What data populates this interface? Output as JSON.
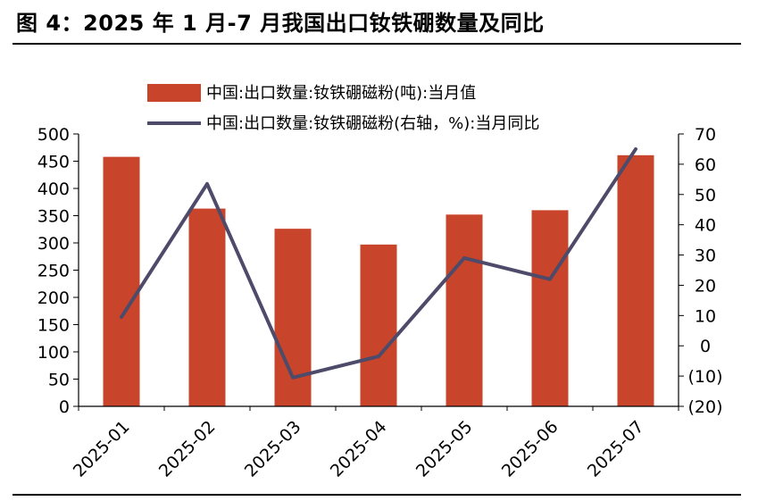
{
  "figure_title": "图 4：2025 年 1 月-7 月我国出口钕铁硼数量及同比",
  "colors": {
    "bar": "#C8442A",
    "line": "#4E4A6A",
    "axis": "#000000"
  },
  "chart_data": {
    "type": "bar",
    "categories": [
      "2025-01",
      "2025-02",
      "2025-03",
      "2025-04",
      "2025-05",
      "2025-06",
      "2025-07"
    ],
    "series": [
      {
        "name": "中国:出口数量:钕铁硼磁粉(吨):当月值",
        "type": "bar",
        "axis": "left",
        "values": [
          458,
          363,
          326,
          297,
          352,
          360,
          461
        ]
      },
      {
        "name": "中国:出口数量:钕铁硼磁粉(右轴，%):当月同比",
        "type": "line",
        "axis": "right",
        "values": [
          9.5,
          53.5,
          -10.5,
          -3.5,
          29,
          22,
          65
        ]
      }
    ],
    "left_axis": {
      "min": 0,
      "max": 500,
      "step": 50,
      "tick_labels": [
        "0",
        "50",
        "100",
        "150",
        "200",
        "250",
        "300",
        "350",
        "400",
        "450",
        "500"
      ]
    },
    "right_axis": {
      "min": -20,
      "max": 70,
      "step": 10,
      "tick_labels": [
        "(20)",
        "(10)",
        "0",
        "10",
        "20",
        "30",
        "40",
        "50",
        "60",
        "70"
      ]
    },
    "grid": false,
    "legend": "top"
  }
}
